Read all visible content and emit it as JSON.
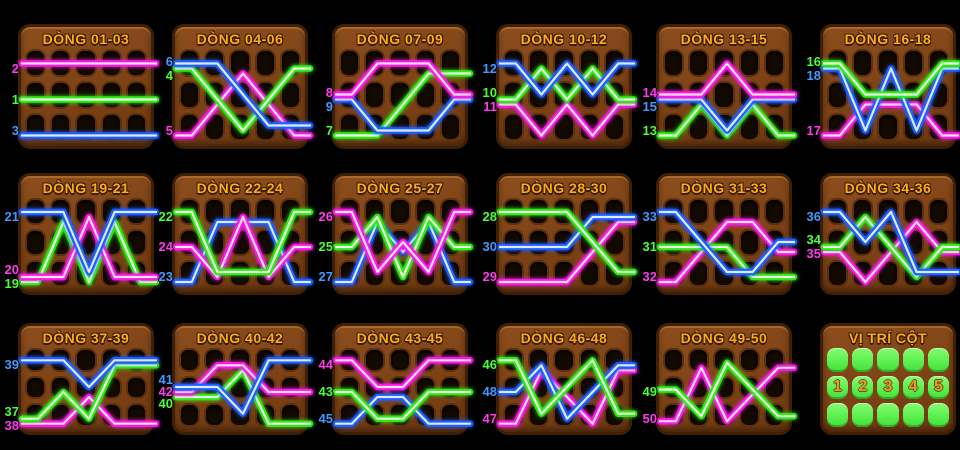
{
  "colors": {
    "green": "#2fe816",
    "magenta": "#f81ae4",
    "blue": "#1e5eff",
    "title_gold": "#ffab17",
    "panel_brown": "#7c4215",
    "slot_dark": "#120900",
    "legend_green": "#5bf04f",
    "legend_number_gold": "#d9a030",
    "background": "#000000"
  },
  "panels": [
    {
      "title": "DÒNG 01-03",
      "lines": [
        {
          "num": "2",
          "color": "magenta",
          "rows": [
            0,
            0,
            0,
            0,
            0
          ]
        },
        {
          "num": "1",
          "color": "green",
          "rows": [
            1,
            1,
            1,
            1,
            1
          ]
        },
        {
          "num": "3",
          "color": "blue",
          "rows": [
            2,
            2,
            2,
            2,
            2
          ]
        }
      ]
    },
    {
      "title": "DÒNG 04-06",
      "lines": [
        {
          "num": "6",
          "color": "blue",
          "rows": [
            0,
            0,
            1,
            2,
            2
          ]
        },
        {
          "num": "4",
          "color": "green",
          "rows": [
            0,
            1,
            2,
            1,
            0
          ]
        },
        {
          "num": "5",
          "color": "magenta",
          "rows": [
            2,
            1,
            0,
            1,
            2
          ]
        }
      ]
    },
    {
      "title": "DÒNG 07-09",
      "lines": [
        {
          "num": "8",
          "color": "magenta",
          "rows": [
            1,
            0,
            0,
            0,
            1
          ]
        },
        {
          "num": "9",
          "color": "blue",
          "rows": [
            1,
            2,
            2,
            2,
            1
          ]
        },
        {
          "num": "7",
          "color": "green",
          "rows": [
            2,
            2,
            1,
            0,
            0
          ]
        }
      ]
    },
    {
      "title": "DÒNG 10-12",
      "lines": [
        {
          "num": "12",
          "color": "blue",
          "rows": [
            0,
            1,
            0,
            1,
            0
          ]
        },
        {
          "num": "10",
          "color": "green",
          "rows": [
            1,
            0,
            1,
            0,
            1
          ]
        },
        {
          "num": "11",
          "color": "magenta",
          "rows": [
            1,
            2,
            1,
            2,
            1
          ]
        }
      ]
    },
    {
      "title": "DÒNG 13-15",
      "lines": [
        {
          "num": "14",
          "color": "magenta",
          "rows": [
            1,
            1,
            0,
            1,
            1
          ]
        },
        {
          "num": "15",
          "color": "blue",
          "rows": [
            1,
            1,
            2,
            1,
            1
          ]
        },
        {
          "num": "13",
          "color": "green",
          "rows": [
            2,
            1,
            2,
            1,
            2
          ]
        }
      ]
    },
    {
      "title": "DÒNG 16-18",
      "lines": [
        {
          "num": "16",
          "color": "green",
          "rows": [
            0,
            1,
            1,
            1,
            0
          ]
        },
        {
          "num": "18",
          "color": "blue",
          "rows": [
            0,
            2,
            0,
            2,
            0
          ]
        },
        {
          "num": "17",
          "color": "magenta",
          "rows": [
            2,
            1,
            1,
            1,
            2
          ]
        }
      ]
    },
    {
      "title": "DÒNG 19-21",
      "lines": [
        {
          "num": "21",
          "color": "blue",
          "rows": [
            0,
            0,
            2,
            0,
            0
          ]
        },
        {
          "num": "20",
          "color": "magenta",
          "rows": [
            2,
            2,
            0,
            2,
            2
          ]
        },
        {
          "num": "19",
          "color": "green",
          "rows": [
            2,
            0,
            2,
            0,
            2
          ]
        }
      ]
    },
    {
      "title": "DÒNG 22-24",
      "lines": [
        {
          "num": "22",
          "color": "green",
          "rows": [
            0,
            2,
            2,
            2,
            0
          ]
        },
        {
          "num": "24",
          "color": "magenta",
          "rows": [
            1,
            2,
            0,
            2,
            1
          ]
        },
        {
          "num": "23",
          "color": "blue",
          "rows": [
            2,
            0,
            0,
            0,
            2
          ]
        }
      ]
    },
    {
      "title": "DÒNG 25-27",
      "lines": [
        {
          "num": "26",
          "color": "magenta",
          "rows": [
            0,
            2,
            1,
            2,
            0
          ]
        },
        {
          "num": "25",
          "color": "green",
          "rows": [
            1,
            0,
            2,
            0,
            1
          ]
        },
        {
          "num": "27",
          "color": "blue",
          "rows": [
            2,
            0,
            1,
            0,
            2
          ]
        }
      ]
    },
    {
      "title": "DÒNG 28-30",
      "lines": [
        {
          "num": "28",
          "color": "green",
          "rows": [
            0,
            0,
            0,
            1,
            2
          ]
        },
        {
          "num": "30",
          "color": "blue",
          "rows": [
            1,
            1,
            1,
            0,
            0
          ]
        },
        {
          "num": "29",
          "color": "magenta",
          "rows": [
            2,
            2,
            2,
            1,
            0
          ]
        }
      ]
    },
    {
      "title": "DÒNG 31-33",
      "lines": [
        {
          "num": "33",
          "color": "blue",
          "rows": [
            0,
            1,
            2,
            2,
            1
          ]
        },
        {
          "num": "31",
          "color": "green",
          "rows": [
            1,
            1,
            1,
            2,
            2
          ]
        },
        {
          "num": "32",
          "color": "magenta",
          "rows": [
            2,
            1,
            0,
            0,
            1
          ]
        }
      ]
    },
    {
      "title": "DÒNG 34-36",
      "lines": [
        {
          "num": "36",
          "color": "blue",
          "rows": [
            0,
            1,
            0,
            2,
            2
          ]
        },
        {
          "num": "34",
          "color": "green",
          "rows": [
            1,
            0,
            1,
            2,
            1
          ]
        },
        {
          "num": "35",
          "color": "magenta",
          "rows": [
            1,
            2,
            1,
            0,
            1
          ]
        }
      ]
    },
    {
      "title": "DÒNG 37-39",
      "lines": [
        {
          "num": "39",
          "color": "blue",
          "rows": [
            0,
            0,
            1,
            0,
            0
          ]
        },
        {
          "num": "37",
          "color": "green",
          "rows": [
            2,
            1,
            2,
            0,
            0
          ]
        },
        {
          "num": "38",
          "color": "magenta",
          "rows": [
            2,
            2,
            1,
            2,
            2
          ]
        }
      ]
    },
    {
      "title": "DÒNG 40-42",
      "lines": [
        {
          "num": "41",
          "color": "blue",
          "rows": [
            1,
            1,
            2,
            0,
            0
          ]
        },
        {
          "num": "42",
          "color": "magenta",
          "rows": [
            1,
            0,
            0,
            1,
            1
          ]
        },
        {
          "num": "40",
          "color": "green",
          "rows": [
            1,
            1,
            0,
            2,
            2
          ]
        }
      ]
    },
    {
      "title": "DÒNG 43-45",
      "lines": [
        {
          "num": "44",
          "color": "magenta",
          "rows": [
            0,
            1,
            1,
            0,
            0
          ]
        },
        {
          "num": "43",
          "color": "green",
          "rows": [
            1,
            2,
            2,
            1,
            1
          ]
        },
        {
          "num": "45",
          "color": "blue",
          "rows": [
            2,
            1,
            1,
            2,
            2
          ]
        }
      ]
    },
    {
      "title": "DÒNG 46-48",
      "lines": [
        {
          "num": "46",
          "color": "green",
          "rows": [
            0,
            2,
            1,
            0,
            2
          ]
        },
        {
          "num": "48",
          "color": "blue",
          "rows": [
            1,
            0,
            2,
            1,
            0
          ]
        },
        {
          "num": "47",
          "color": "magenta",
          "rows": [
            2,
            0,
            1,
            2,
            0
          ]
        }
      ]
    },
    {
      "title": "DÒNG 49-50",
      "lines": [
        {
          "num": "49",
          "color": "green",
          "rows": [
            1,
            2,
            0,
            1,
            2
          ]
        },
        {
          "num": "50",
          "color": "magenta",
          "rows": [
            2,
            0,
            2,
            1,
            0
          ]
        }
      ]
    }
  ],
  "legend": {
    "title": "VỊ TRÍ CỘT",
    "columns": [
      "1",
      "2",
      "3",
      "4",
      "5"
    ]
  }
}
